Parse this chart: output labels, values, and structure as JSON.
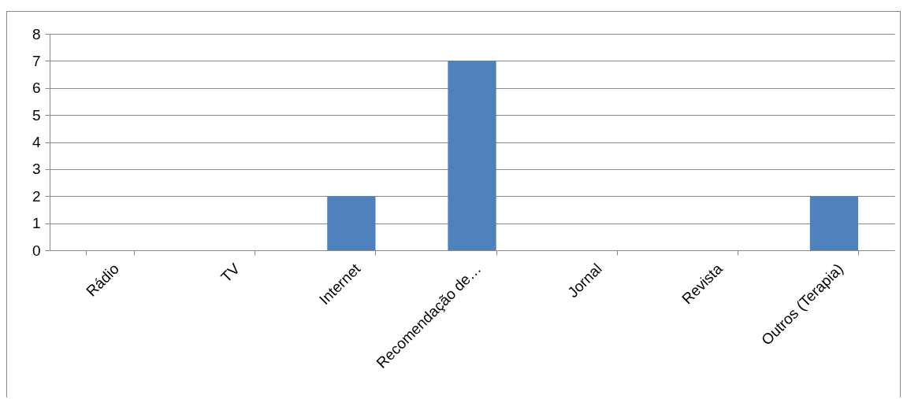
{
  "chart_data": {
    "type": "bar",
    "categories": [
      "Rádio",
      "TV",
      "Internet",
      "Recomendação de…",
      "Jornal",
      "Revista",
      "Outros (Terapia)"
    ],
    "values": [
      0,
      0,
      2,
      7,
      0,
      0,
      2
    ],
    "color": "#4f81bd",
    "ylim": [
      0,
      8
    ],
    "yticks": [
      0,
      1,
      2,
      3,
      4,
      5,
      6,
      7,
      8
    ],
    "grid": "y"
  }
}
